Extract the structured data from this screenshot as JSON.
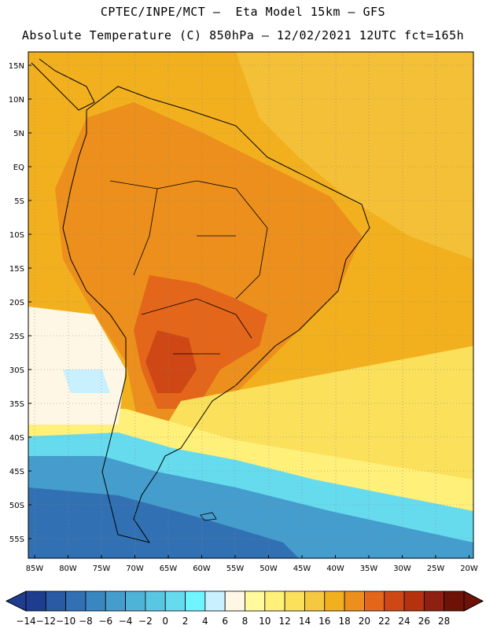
{
  "title": {
    "line1": "CPTEC/INPE/MCT –  Eta Model 15km – GFS",
    "line2": "Absolute Temperature (C) 850hPa – 12/02/2021 12UTC fct=165h"
  },
  "axes": {
    "lat_ticks": [
      "15N",
      "10N",
      "5N",
      "EQ",
      "5S",
      "10S",
      "15S",
      "20S",
      "25S",
      "30S",
      "35S",
      "40S",
      "45S",
      "50S",
      "55S"
    ],
    "lon_ticks": [
      "85W",
      "80W",
      "75W",
      "70W",
      "65W",
      "60W",
      "55W",
      "50W",
      "45W",
      "40W",
      "35W",
      "30W",
      "25W",
      "20W"
    ]
  },
  "colorbar": {
    "labels": [
      "-14",
      "-12",
      "-10",
      "-8",
      "-6",
      "-4",
      "-2",
      "0",
      "2",
      "4",
      "6",
      "8",
      "10",
      "12",
      "14",
      "16",
      "18",
      "20",
      "22",
      "24",
      "26",
      "28"
    ],
    "colors": [
      "#1f3d8f",
      "#2a5aa3",
      "#3171b3",
      "#3a86c0",
      "#449dcc",
      "#4fb3d8",
      "#5ac7e2",
      "#66dbee",
      "#6ff5ff",
      "#c8f0ff",
      "#fff7e6",
      "#fffa9e",
      "#fff07a",
      "#fbe05c",
      "#f5c842",
      "#f2b01e",
      "#ec8f1c",
      "#e3661a",
      "#cf4714",
      "#b5320e",
      "#8f1f10",
      "#6e1208"
    ]
  },
  "map": {
    "background": "#f2b01e",
    "warm_core": "#e3661a",
    "mid_warm": "#ec8f1c",
    "cool_band": "#66dbee",
    "cold_band": "#3171b3"
  }
}
